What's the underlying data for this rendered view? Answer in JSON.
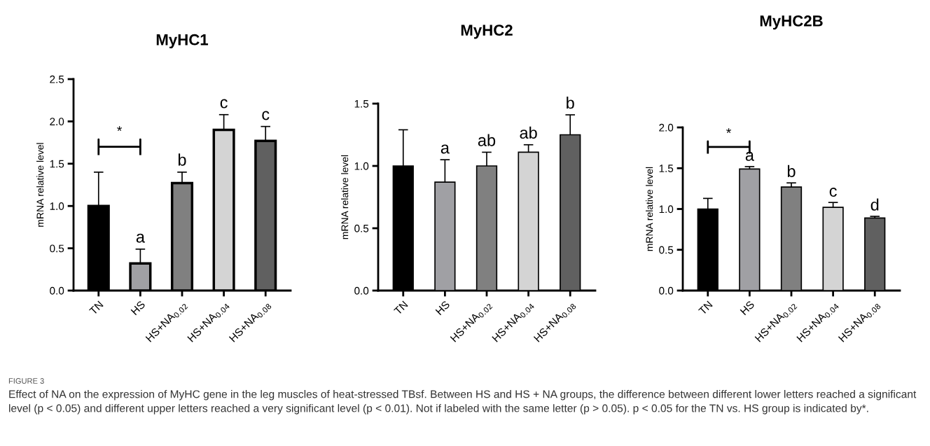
{
  "chart_data": [
    {
      "type": "bar",
      "title": "MyHC1",
      "ylabel": "mRNA relative level",
      "categories": [
        "TN",
        "HS",
        "HS+NA$_{0.02}$",
        "HS+NA$_{0.04}$",
        "HS+NA$_{0.08}$"
      ],
      "values": [
        1.0,
        0.32,
        1.27,
        1.9,
        1.77
      ],
      "errors": [
        [
          1.0,
          1.4
        ],
        [
          0.32,
          0.49
        ],
        [
          1.27,
          1.4
        ],
        [
          1.9,
          2.08
        ],
        [
          1.77,
          1.94
        ]
      ],
      "colors": [
        "#000000",
        "#a0a0a4",
        "#808080",
        "#d4d4d4",
        "#606060"
      ],
      "value_labels": [
        null,
        "a",
        "b",
        "c",
        "c"
      ],
      "ylim": [
        0,
        2.5
      ],
      "yticks": [
        {
          "value": 0,
          "label": "0.0"
        },
        0.5,
        {
          "value": 1,
          "label": "1.0"
        },
        1.5,
        {
          "value": 2,
          "label": "2.0"
        },
        2.5
      ],
      "grid": false,
      "annotations": [
        "*",
        "FIGURE 3",
        "Effect of NA on the expression of MyHC gene in the leg muscles of heat-stressed TBsf. Between HS and HS + NA groups, the difference between different lower letters reached a significant level (p < 0.05) and different upper letters reached a very significant level (p < 0.01). Not if labeled with the same letter (p > 0.05). p < 0.05 for the TN vs. HS group is indicated by*."
      ]
    },
    {
      "type": "bar",
      "title": "MyHC2",
      "ylabel": "mRNA relative level",
      "categories": [
        "TN",
        "HS",
        "HS+NA$_{0.02}$",
        "HS+NA$_{0.04}$",
        "HS+NA$_{0.08}$"
      ],
      "values": [
        1.0,
        0.87,
        1.0,
        1.11,
        1.25
      ],
      "errors": [
        [
          1.0,
          1.29
        ],
        [
          0.87,
          1.05
        ],
        [
          1.0,
          1.11
        ],
        [
          1.11,
          1.17
        ],
        [
          1.25,
          1.41
        ]
      ],
      "colors": [
        "#000000",
        "#a0a0a4",
        "#808080",
        "#d4d4d4",
        "#606060"
      ],
      "value_labels": [
        null,
        "a",
        "ab",
        "ab",
        "b"
      ],
      "ylim": [
        0,
        1.5
      ],
      "yticks": [
        {
          "value": 0,
          "label": "0.0"
        },
        0.5,
        {
          "value": 1,
          "label": "1.0"
        },
        1.5
      ],
      "grid": false
    },
    {
      "type": "bar",
      "title": "MyHC2B",
      "ylabel": "mRNA relative level",
      "categories": [
        "TN",
        "HS",
        "HS+NA$_{0.02}$",
        "HS+NA$_{0.04}$",
        "HS+NA$_{0.08}$"
      ],
      "values": [
        1.0,
        1.49,
        1.27,
        1.02,
        0.89
      ],
      "errors": [
        [
          1.0,
          1.13
        ],
        [
          1.49,
          1.52
        ],
        [
          1.27,
          1.32
        ],
        [
          1.02,
          1.08
        ],
        [
          0.89,
          0.91
        ]
      ],
      "colors": [
        "#000000",
        "#a0a0a4",
        "#808080",
        "#d4d4d4",
        "#606060"
      ],
      "value_labels": [
        null,
        "a",
        "b",
        "c",
        "d"
      ],
      "ylim": [
        0,
        2.0
      ],
      "yticks": [
        {
          "value": 0,
          "label": "0.0"
        },
        0.5,
        {
          "value": 1,
          "label": "1.0"
        },
        1.5,
        {
          "value": 2,
          "label": "2.0"
        }
      ],
      "grid": false,
      "annotations": [
        "*"
      ]
    }
  ]
}
